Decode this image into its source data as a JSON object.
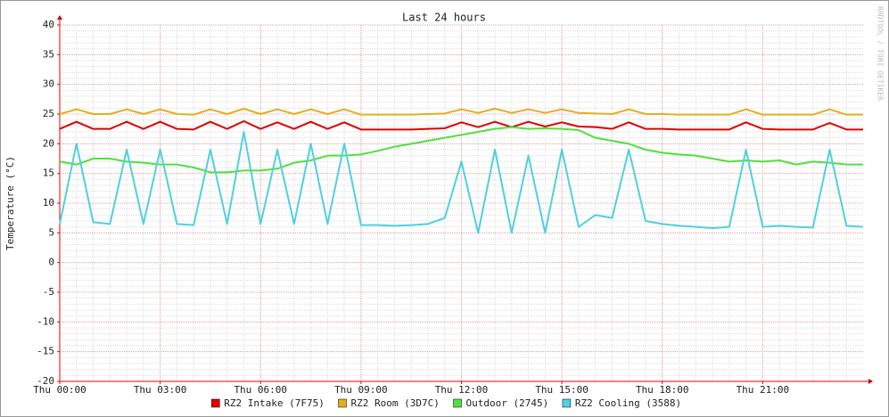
{
  "chart_data": {
    "type": "line",
    "title": "Last 24 hours",
    "y_label": "Temperature (°C)",
    "side_text": "RRDTOOL / TOBI OETIKER",
    "x": [
      0,
      0.5,
      1,
      1.5,
      2,
      2.5,
      3,
      3.5,
      4,
      4.5,
      5,
      5.5,
      6,
      6.5,
      7,
      7.5,
      8,
      8.5,
      9,
      9.5,
      10,
      10.5,
      11,
      11.5,
      12,
      12.5,
      13,
      13.5,
      14,
      14.5,
      15,
      15.5,
      16,
      16.5,
      17,
      17.5,
      18,
      18.5,
      19,
      19.5,
      20,
      20.5,
      21,
      21.5,
      22,
      22.5,
      23,
      23.5,
      24
    ],
    "xlim": [
      0,
      24
    ],
    "xticks": [
      {
        "value": 0,
        "label": "Thu 00:00"
      },
      {
        "value": 3,
        "label": "Thu 03:00"
      },
      {
        "value": 6,
        "label": "Thu 06:00"
      },
      {
        "value": 9,
        "label": "Thu 09:00"
      },
      {
        "value": 12,
        "label": "Thu 12:00"
      },
      {
        "value": 15,
        "label": "Thu 15:00"
      },
      {
        "value": 18,
        "label": "Thu 18:00"
      },
      {
        "value": 21,
        "label": "Thu 21:00"
      }
    ],
    "ylim": [
      -20,
      40
    ],
    "yticks": [
      -20,
      -15,
      -10,
      -5,
      0,
      5,
      10,
      15,
      20,
      25,
      30,
      35,
      40
    ],
    "grid": true,
    "series": [
      {
        "name": "RZ2 Intake (7F75)",
        "color": "#e00000",
        "values": [
          22.5,
          23.7,
          22.5,
          22.5,
          23.7,
          22.5,
          23.7,
          22.5,
          22.4,
          23.7,
          22.5,
          23.8,
          22.5,
          23.6,
          22.5,
          23.7,
          22.5,
          23.6,
          22.4,
          22.4,
          22.4,
          22.4,
          22.5,
          22.6,
          23.6,
          22.8,
          23.7,
          22.8,
          23.7,
          22.9,
          23.6,
          22.9,
          22.8,
          22.5,
          23.6,
          22.5,
          22.5,
          22.4,
          22.4,
          22.4,
          22.4,
          23.6,
          22.5,
          22.4,
          22.4,
          22.4,
          23.5,
          22.4,
          22.4
        ]
      },
      {
        "name": "RZ2 Room (3D7C)",
        "color": "#e0b020",
        "values": [
          25,
          25.8,
          25,
          25,
          25.8,
          25,
          25.8,
          25,
          24.9,
          25.8,
          25,
          25.9,
          25,
          25.8,
          25,
          25.8,
          25,
          25.8,
          24.9,
          24.9,
          24.9,
          24.9,
          25,
          25.1,
          25.8,
          25.2,
          25.9,
          25.2,
          25.8,
          25.2,
          25.8,
          25.2,
          25.1,
          25,
          25.8,
          25,
          25,
          24.9,
          24.9,
          24.9,
          24.9,
          25.8,
          24.9,
          24.9,
          24.9,
          24.9,
          25.8,
          24.9,
          24.9
        ]
      },
      {
        "name": "Outdoor (2745)",
        "color": "#50e040",
        "values": [
          17,
          16.5,
          17.5,
          17.5,
          17,
          16.8,
          16.5,
          16.5,
          16,
          15.2,
          15.2,
          15.5,
          15.5,
          15.8,
          16.8,
          17.2,
          18,
          18,
          18.2,
          18.8,
          19.5,
          20,
          20.5,
          21,
          21.5,
          22,
          22.5,
          22.8,
          22.5,
          22.6,
          22.5,
          22.3,
          21,
          20.5,
          20,
          19,
          18.5,
          18.2,
          18,
          17.5,
          17,
          17.2,
          17,
          17.2,
          16.5,
          17,
          16.8,
          16.5,
          16.5
        ]
      },
      {
        "name": "RZ2 Cooling (3588)",
        "color": "#50d0e0",
        "values": [
          6.5,
          20,
          6.8,
          6.5,
          19,
          6.5,
          19,
          6.5,
          6.3,
          19,
          6.5,
          22,
          6.5,
          19,
          6.5,
          20,
          6.5,
          20,
          6.3,
          6.3,
          6.2,
          6.3,
          6.5,
          7.5,
          17,
          5,
          19,
          5,
          18,
          5,
          19,
          6,
          8,
          7.5,
          19,
          7,
          6.5,
          6.2,
          6,
          5.8,
          6,
          19,
          6,
          6.2,
          6,
          5.9,
          19,
          6.2,
          6
        ]
      }
    ]
  }
}
